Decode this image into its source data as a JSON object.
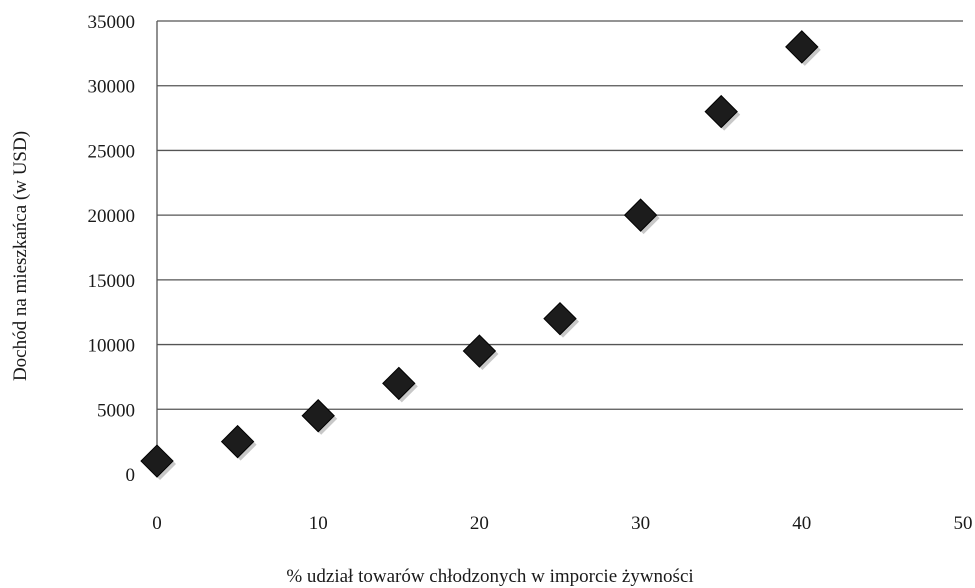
{
  "chart_data": {
    "type": "scatter",
    "title": "",
    "xlabel": "% udział towarów chłodzonych w imporcie żywności",
    "ylabel": "Dochód na mieszkańca (w USD)",
    "xlim": [
      0,
      50
    ],
    "ylim": [
      0,
      35000
    ],
    "x_ticks": [
      0,
      10,
      20,
      30,
      40,
      50
    ],
    "y_ticks": [
      0,
      5000,
      10000,
      15000,
      20000,
      25000,
      30000,
      35000
    ],
    "grid": "horizontal",
    "marker": "diamond",
    "marker_color": "#1c1c1c",
    "points": [
      {
        "x": 0,
        "y": 1000
      },
      {
        "x": 5,
        "y": 2500
      },
      {
        "x": 10,
        "y": 4500
      },
      {
        "x": 15,
        "y": 7000
      },
      {
        "x": 20,
        "y": 9500
      },
      {
        "x": 25,
        "y": 12000
      },
      {
        "x": 30,
        "y": 20000
      },
      {
        "x": 35,
        "y": 28000
      },
      {
        "x": 40,
        "y": 33000
      }
    ]
  }
}
